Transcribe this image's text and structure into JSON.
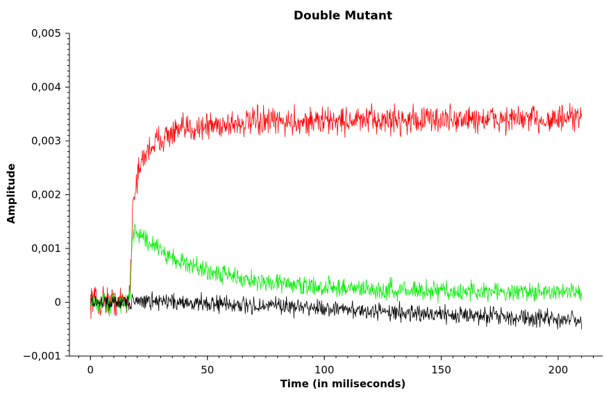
{
  "chart_data": {
    "type": "line",
    "title": "Double Mutant",
    "xlabel": "Time (in miliseconds)",
    "ylabel": "Amplitude",
    "xlim": [
      -9,
      219
    ],
    "ylim": [
      -0.001,
      0.005
    ],
    "x_ticks": [
      0,
      50,
      100,
      150,
      200
    ],
    "x_tick_labels": [
      "0",
      "50",
      "100",
      "150",
      "200"
    ],
    "y_ticks": [
      -0.001,
      0,
      0.001,
      0.002,
      0.003,
      0.004,
      0.005
    ],
    "y_tick_labels": [
      "−0,001",
      "0",
      "0,001",
      "0,002",
      "0,003",
      "0,004",
      "0,005"
    ],
    "grid": false,
    "legend": "none",
    "series": [
      {
        "color": "#ff0000",
        "x": [
          0,
          2,
          4,
          6,
          8,
          10,
          12,
          14,
          16,
          17,
          17.5,
          18,
          19,
          20,
          21,
          22,
          23,
          24,
          25,
          26,
          28,
          30,
          33,
          36,
          40,
          45,
          50,
          55,
          60,
          70,
          80,
          90,
          100,
          110,
          120,
          130,
          140,
          150,
          160,
          170,
          180,
          190,
          200,
          210
        ],
        "values": [
          5e-05,
          0.0001,
          -5e-05,
          8e-05,
          0.0,
          4e-05,
          -2e-05,
          3e-05,
          0.0,
          0.0003,
          0.0011,
          0.0018,
          0.0021,
          0.0023,
          0.00245,
          0.0026,
          0.0027,
          0.00278,
          0.00285,
          0.0029,
          0.00298,
          0.00305,
          0.0031,
          0.00315,
          0.0032,
          0.00325,
          0.00328,
          0.0033,
          0.00332,
          0.00334,
          0.00335,
          0.00336,
          0.00337,
          0.00338,
          0.00338,
          0.00339,
          0.00339,
          0.0034,
          0.0034,
          0.0034,
          0.0034,
          0.0034,
          0.0034,
          0.0034
        ],
        "noise": 0.0002
      },
      {
        "color": "#00ee00",
        "x": [
          0,
          2,
          4,
          6,
          8,
          10,
          12,
          14,
          16,
          17,
          17.5,
          18,
          19,
          20,
          22,
          25,
          28,
          32,
          36,
          40,
          45,
          50,
          55,
          60,
          70,
          80,
          90,
          100,
          110,
          120,
          130,
          140,
          150,
          160,
          170,
          180,
          190,
          200,
          210
        ],
        "values": [
          0.0,
          5e-05,
          -0.0001,
          3e-05,
          -5e-05,
          0.0001,
          0.0,
          -5e-05,
          0.0,
          0.0002,
          0.0008,
          0.0013,
          0.00135,
          0.0013,
          0.0012,
          0.0011,
          0.001,
          0.0009,
          0.0008,
          0.00072,
          0.00065,
          0.00058,
          0.00052,
          0.00048,
          0.0004,
          0.00035,
          0.00031,
          0.00028,
          0.00026,
          0.00024,
          0.00023,
          0.00022,
          0.00021,
          0.0002,
          0.0002,
          0.00019,
          0.00019,
          0.00018,
          0.00018
        ],
        "noise": 0.00014
      },
      {
        "color": "#000000",
        "x": [
          0,
          10,
          17,
          20,
          30,
          40,
          50,
          60,
          70,
          80,
          90,
          100,
          110,
          120,
          130,
          140,
          150,
          160,
          170,
          180,
          190,
          200,
          210
        ],
        "values": [
          0.0,
          0.0,
          0.0,
          3e-05,
          2e-05,
          0.0,
          -2e-05,
          -4e-05,
          -6e-05,
          -8e-05,
          -0.0001,
          -0.00012,
          -0.00014,
          -0.00016,
          -0.00018,
          -0.0002,
          -0.00022,
          -0.00024,
          -0.00026,
          -0.00028,
          -0.0003,
          -0.00032,
          -0.00034
        ],
        "noise": 0.00012
      }
    ]
  }
}
